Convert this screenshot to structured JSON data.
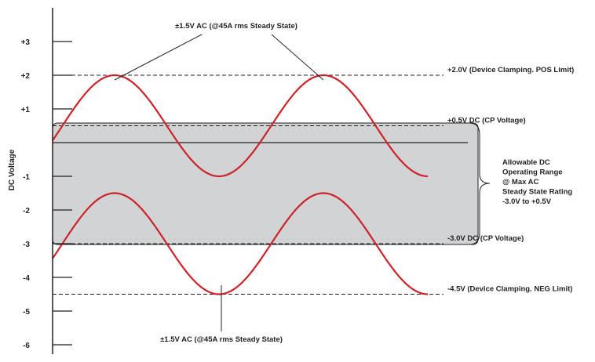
{
  "chart_data": {
    "type": "diagram",
    "ylabel": "DC Voltage",
    "y_ticks": [
      {
        "label": "+3",
        "value": 3
      },
      {
        "label": "+2",
        "value": 2
      },
      {
        "label": "+1",
        "value": 1
      },
      {
        "label": "-1",
        "value": -1
      },
      {
        "label": "-2",
        "value": -2
      },
      {
        "label": "-3",
        "value": -3
      },
      {
        "label": "-4",
        "value": -4
      },
      {
        "label": "-5",
        "value": -5
      },
      {
        "label": "-6",
        "value": -6
      }
    ],
    "reference_lines": [
      {
        "label": "+2.0V (Device Clamping. POS Limit)",
        "value": 2.0,
        "style": "dashed"
      },
      {
        "label": "+0.5V DC (CP Voltage)",
        "value": 0.5,
        "style": "dashed"
      },
      {
        "label": "-3.0V DC (CP Voltage)",
        "value": -3.0,
        "style": "dashed"
      },
      {
        "label": "-4.5V (Device Clamping. NEG Limit)",
        "value": -4.5,
        "style": "dashed"
      }
    ],
    "zero_line": {
      "value": 0
    },
    "allowable_range": {
      "ymin": -3.0,
      "ymax": 0.5,
      "fill": "#d1d3d4",
      "label_lines": [
        "Allowable DC",
        "Operating Range",
        "@ Max AC",
        "Steady State Rating",
        "-3.0V  to +0.5V"
      ]
    },
    "series": [
      {
        "center": 0.5,
        "amplitude": 1.5,
        "color": "#cc2229"
      },
      {
        "center": -3.0,
        "amplitude": 1.5,
        "color": "#cc2229"
      }
    ],
    "annotations": {
      "top": "±1.5V AC (@45A rms Steady State)",
      "bottom": "±1.5V AC (@45A rms Steady State)"
    }
  }
}
